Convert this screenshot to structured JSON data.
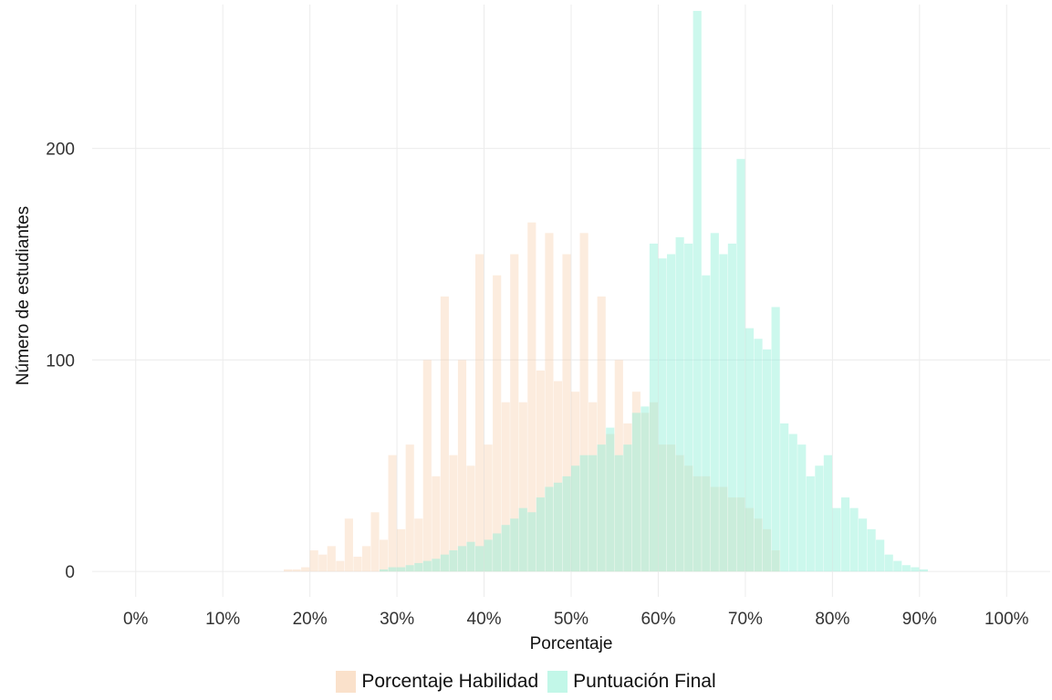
{
  "chart_data": {
    "type": "bar",
    "title": "",
    "xlabel": "Porcentaje",
    "ylabel": "Número de estudiantes",
    "xlim": [
      -0.05,
      1.05
    ],
    "ylim": [
      -12,
      268
    ],
    "x_ticks": [
      "0%",
      "10%",
      "20%",
      "30%",
      "40%",
      "50%",
      "60%",
      "70%",
      "80%",
      "90%",
      "100%"
    ],
    "x_tick_values": [
      0,
      0.1,
      0.2,
      0.3,
      0.4,
      0.5,
      0.6,
      0.7,
      0.8,
      0.9,
      1.0
    ],
    "y_ticks": [
      "0",
      "100",
      "200"
    ],
    "y_tick_values": [
      0,
      100,
      200
    ],
    "grid": true,
    "legend_position": "bottom",
    "bin_width": 0.01,
    "series": [
      {
        "name": "Porcentaje Habilidad",
        "color": "#f5c9a0",
        "opacity": 0.35,
        "x": [
          0.17,
          0.18,
          0.19,
          0.2,
          0.21,
          0.22,
          0.23,
          0.24,
          0.25,
          0.26,
          0.27,
          0.28,
          0.29,
          0.3,
          0.31,
          0.32,
          0.33,
          0.34,
          0.35,
          0.36,
          0.37,
          0.38,
          0.39,
          0.4,
          0.41,
          0.42,
          0.43,
          0.44,
          0.45,
          0.46,
          0.47,
          0.48,
          0.49,
          0.5,
          0.51,
          0.52,
          0.53,
          0.54,
          0.55,
          0.56,
          0.57,
          0.58,
          0.59,
          0.6,
          0.61,
          0.62,
          0.63,
          0.64,
          0.65,
          0.66,
          0.67,
          0.68,
          0.69,
          0.7,
          0.71,
          0.72,
          0.73
        ],
        "values": [
          1,
          1,
          2,
          10,
          8,
          12,
          5,
          25,
          7,
          12,
          28,
          15,
          55,
          20,
          60,
          25,
          100,
          45,
          130,
          55,
          100,
          50,
          150,
          60,
          140,
          80,
          150,
          80,
          165,
          95,
          160,
          90,
          150,
          85,
          160,
          80,
          130,
          65,
          100,
          70,
          85,
          75,
          80,
          60,
          60,
          55,
          50,
          45,
          45,
          40,
          40,
          35,
          35,
          30,
          25,
          20,
          10
        ]
      },
      {
        "name": "Puntuación Final",
        "color": "#8ff0d6",
        "opacity": 0.45,
        "x": [
          0.28,
          0.29,
          0.3,
          0.31,
          0.32,
          0.33,
          0.34,
          0.35,
          0.36,
          0.37,
          0.38,
          0.39,
          0.4,
          0.41,
          0.42,
          0.43,
          0.44,
          0.45,
          0.46,
          0.47,
          0.48,
          0.49,
          0.5,
          0.51,
          0.52,
          0.53,
          0.54,
          0.55,
          0.56,
          0.57,
          0.58,
          0.59,
          0.6,
          0.61,
          0.62,
          0.63,
          0.64,
          0.65,
          0.66,
          0.67,
          0.68,
          0.69,
          0.7,
          0.71,
          0.72,
          0.73,
          0.74,
          0.75,
          0.76,
          0.77,
          0.78,
          0.79,
          0.8,
          0.81,
          0.82,
          0.83,
          0.84,
          0.85,
          0.86,
          0.87,
          0.88,
          0.89,
          0.9
        ],
        "values": [
          1,
          2,
          2,
          3,
          4,
          5,
          6,
          8,
          10,
          12,
          14,
          12,
          15,
          18,
          22,
          25,
          30,
          28,
          35,
          40,
          42,
          45,
          50,
          55,
          55,
          60,
          68,
          55,
          60,
          75,
          78,
          155,
          148,
          150,
          158,
          155,
          265,
          140,
          160,
          150,
          155,
          195,
          115,
          110,
          105,
          125,
          70,
          65,
          60,
          45,
          50,
          55,
          30,
          35,
          30,
          25,
          20,
          15,
          8,
          5,
          3,
          2,
          1
        ]
      }
    ]
  }
}
